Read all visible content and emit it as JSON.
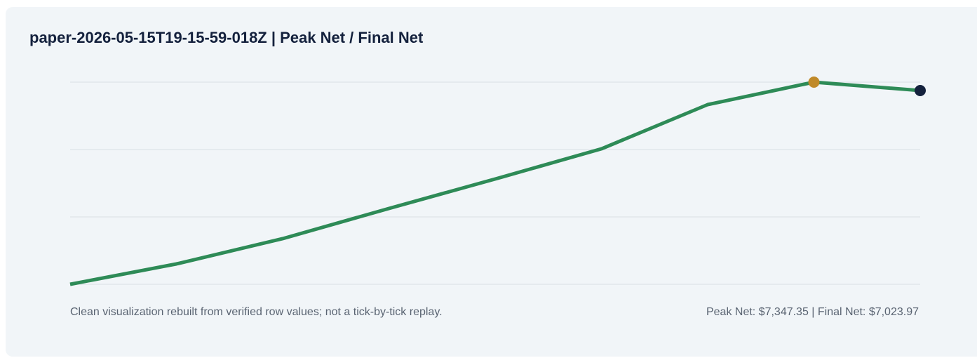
{
  "chart_data": {
    "type": "line",
    "title": "paper-2026-05-15T19-15-59-018Z | Peak Net / Final Net",
    "values": [
      -414,
      368,
      1338,
      2497,
      3628,
      4787,
      6485,
      7347.35,
      7023.97
    ],
    "color": "#2e8b57",
    "ylim": [
      -414,
      7347.35
    ],
    "ygrid": [
      -414,
      2173,
      4760,
      7347.35
    ],
    "grid": true,
    "peak_index": 7,
    "peak_color": "#c08a2a",
    "final_color": "#14213d",
    "note": "Clean visualization rebuilt from verified row values; not a tick-by-tick replay.",
    "summary": "Peak Net: $7,347.35 | Final Net: $7,023.97"
  }
}
